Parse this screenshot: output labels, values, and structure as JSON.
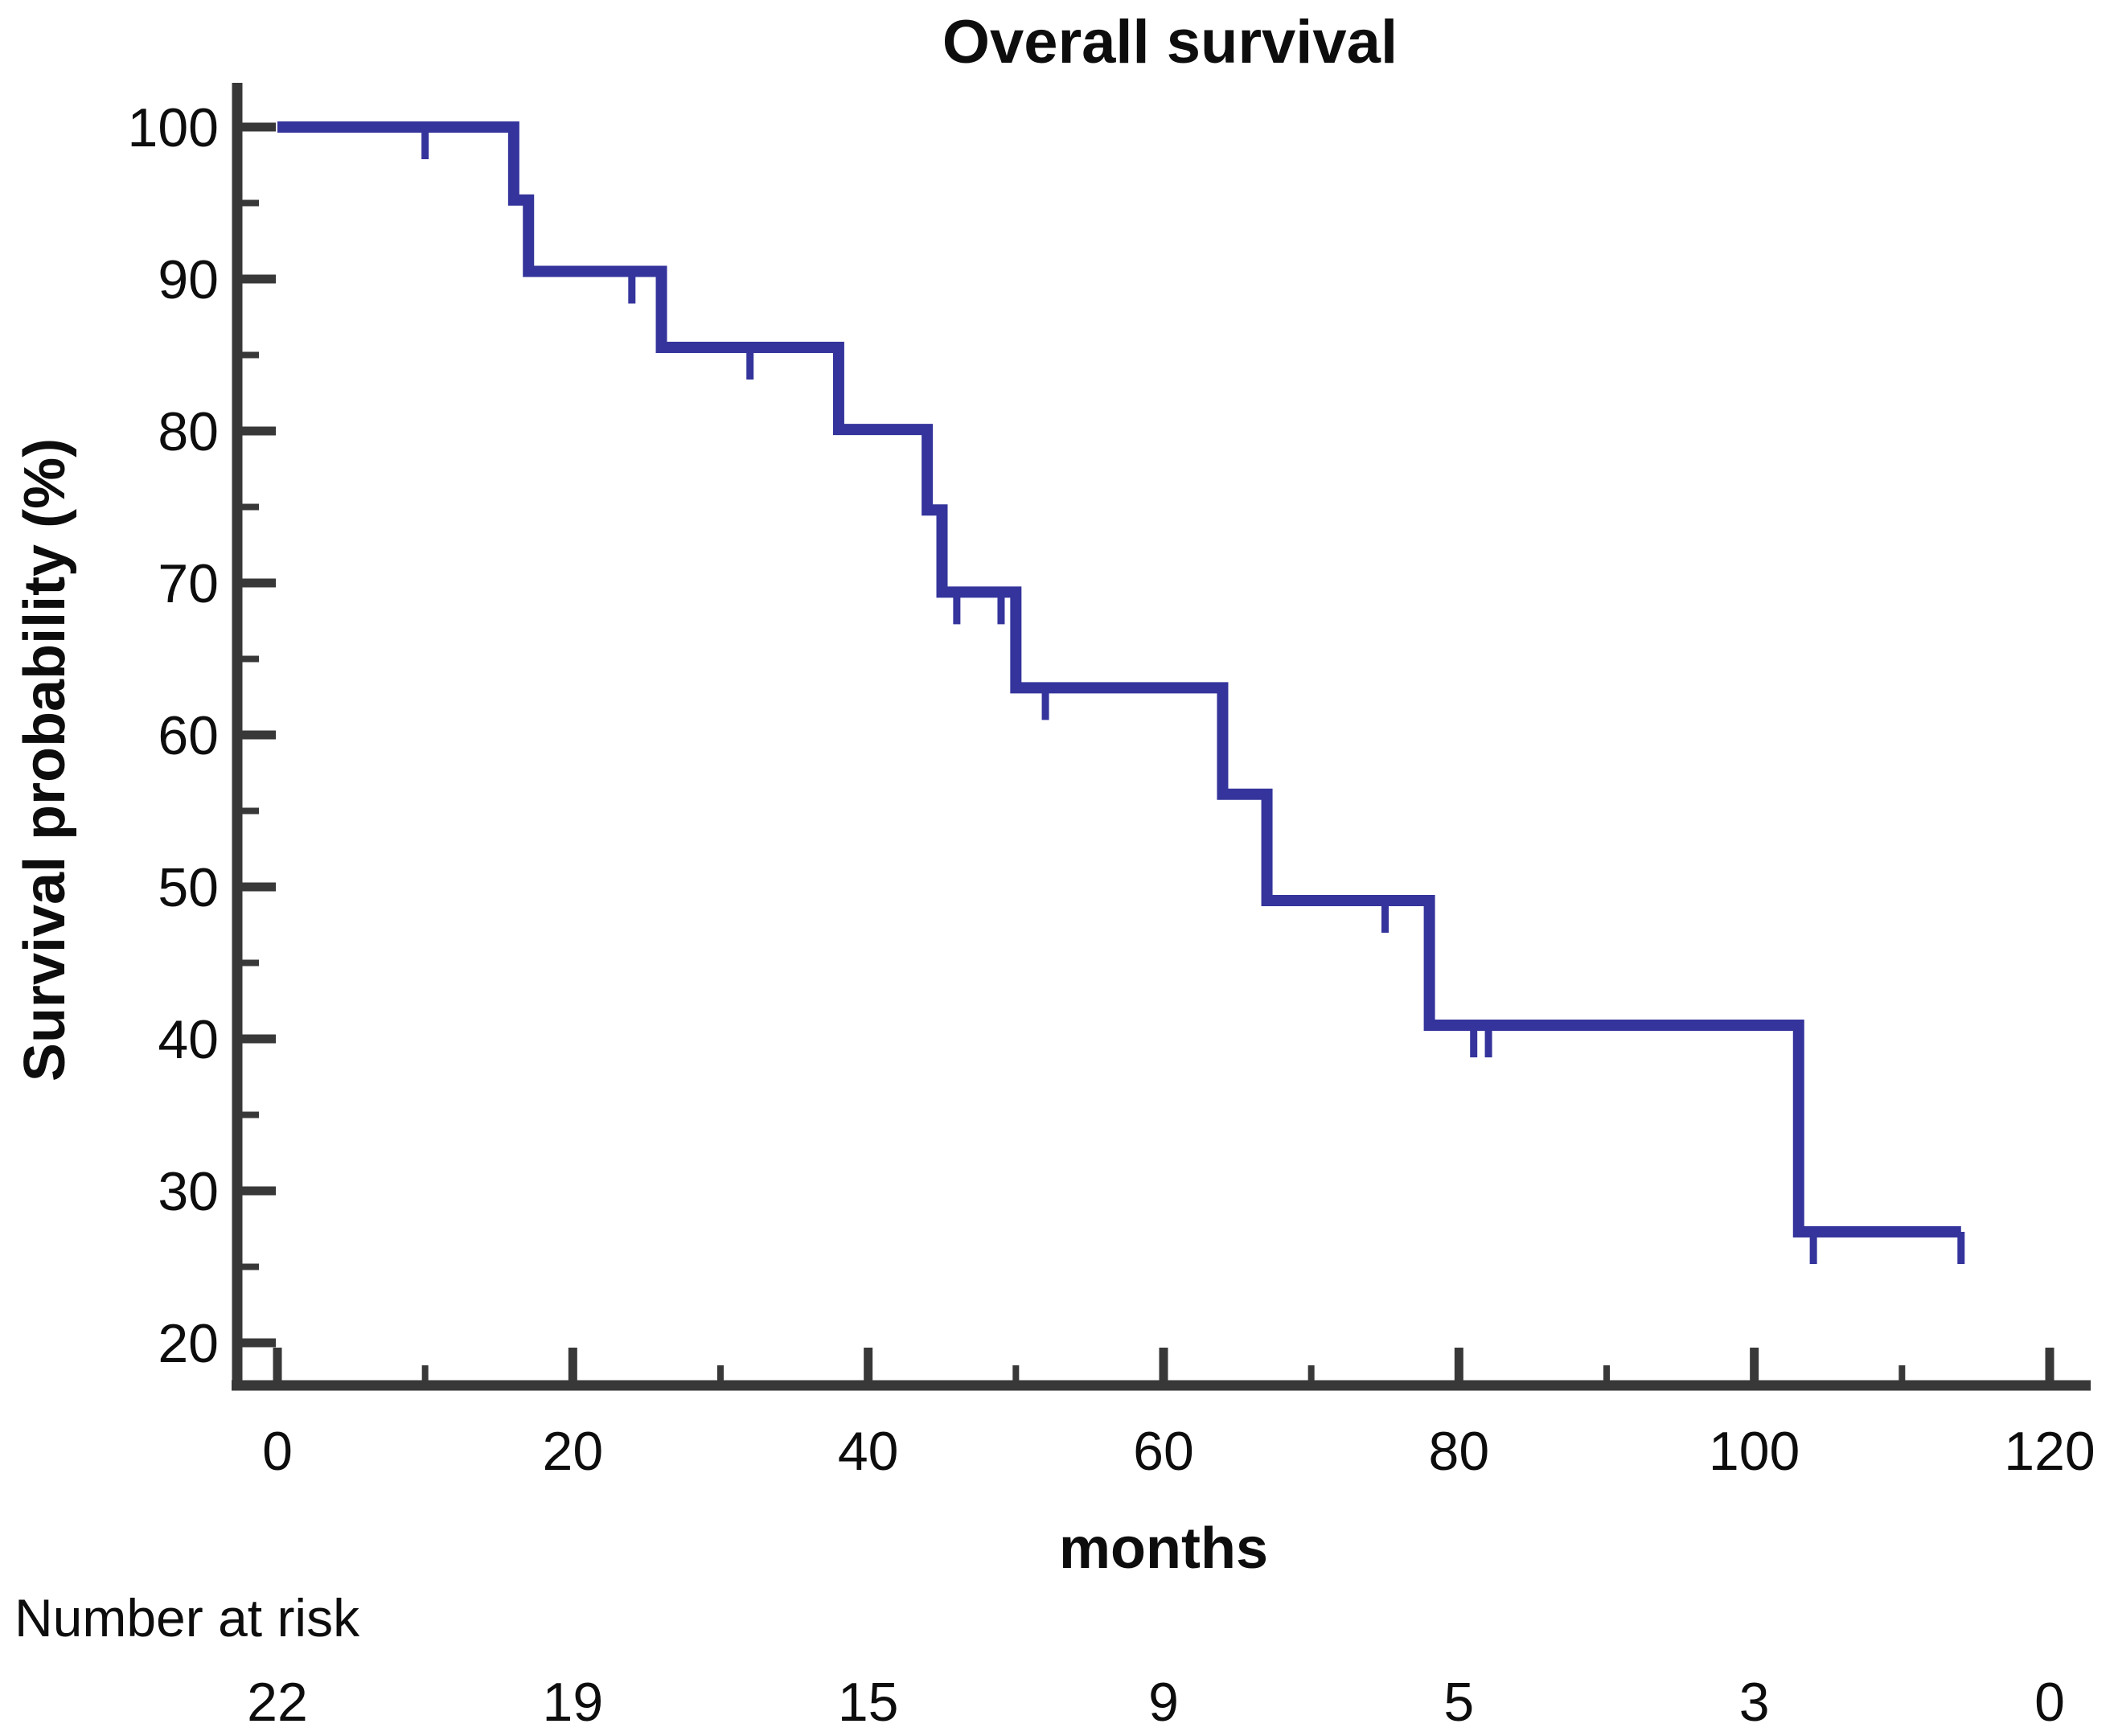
{
  "page": {
    "background": "#ffffff"
  },
  "chart_data": {
    "type": "line",
    "subtype": "kaplan-meier-step-curve",
    "title": "Overall survival",
    "xlabel": "months",
    "ylabel": "Survival probability (%)",
    "xlim": [
      0,
      120
    ],
    "ylim": [
      20,
      100
    ],
    "grid": false,
    "legend_position": "none",
    "x_major_ticks": [
      0,
      20,
      40,
      60,
      80,
      100,
      120
    ],
    "x_minor_ticks": [
      10,
      30,
      50,
      70,
      90,
      110
    ],
    "y_major_ticks": [
      100,
      90,
      80,
      70,
      60,
      50,
      40,
      30,
      20
    ],
    "y_minor_ticks": [
      95,
      85,
      75,
      65,
      55,
      45,
      35,
      25
    ],
    "series": [
      {
        "name": "Overall survival",
        "color": "#34349c",
        "step_points": [
          [
            0,
            100
          ],
          [
            16,
            100
          ],
          [
            16,
            95.2
          ],
          [
            17,
            95.2
          ],
          [
            17,
            90.5
          ],
          [
            26,
            90.5
          ],
          [
            26,
            85.5
          ],
          [
            38,
            85.5
          ],
          [
            38,
            80.1
          ],
          [
            44,
            80.1
          ],
          [
            44,
            74.8
          ],
          [
            45,
            74.8
          ],
          [
            45,
            69.4
          ],
          [
            50,
            69.4
          ],
          [
            50,
            63.1
          ],
          [
            64,
            63.1
          ],
          [
            64,
            56.1
          ],
          [
            67,
            56.1
          ],
          [
            67,
            49.1
          ],
          [
            78,
            49.1
          ],
          [
            78,
            40.9
          ],
          [
            103,
            40.9
          ],
          [
            103,
            27.3
          ],
          [
            114,
            27.3
          ]
        ],
        "censor_marks": [
          [
            10,
            100
          ],
          [
            24,
            90.5
          ],
          [
            32,
            85.5
          ],
          [
            46,
            69.4
          ],
          [
            49,
            69.4
          ],
          [
            52,
            63.1
          ],
          [
            75,
            49.1
          ],
          [
            81,
            40.9
          ],
          [
            82,
            40.9
          ],
          [
            104,
            27.3
          ],
          [
            114,
            27.3
          ]
        ]
      }
    ],
    "number_at_risk": {
      "label": "Number at risk",
      "label_color": "#1b1b9e",
      "times": [
        0,
        20,
        40,
        60,
        80,
        100,
        120
      ],
      "values": [
        22,
        19,
        15,
        9,
        5,
        3,
        0
      ]
    },
    "colors": {
      "curve": "#34349c",
      "axis": "#383838",
      "text": "#0d0d0d",
      "background": "#ffffff"
    }
  }
}
